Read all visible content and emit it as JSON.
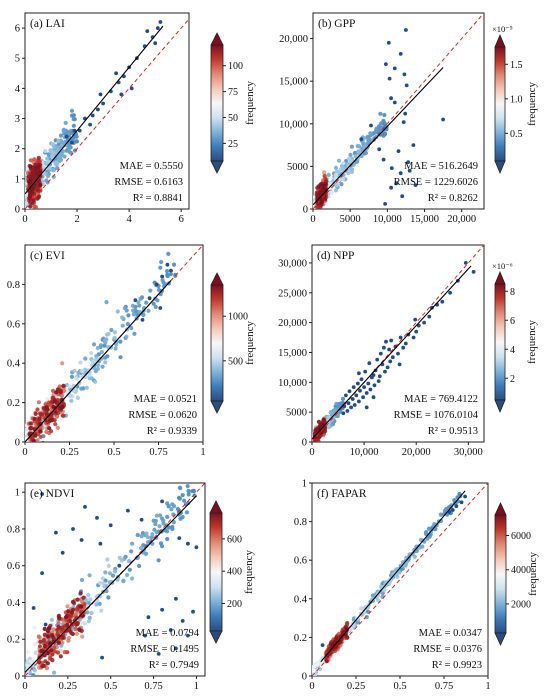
{
  "colorbar": {
    "stops": [
      "#2b4c7e",
      "#3d7cb8",
      "#7fb3d8",
      "#cfe2ee",
      "#f7f7f7",
      "#f4c8b5",
      "#e08a76",
      "#c0392b",
      "#7a1020"
    ]
  },
  "chart_data": [
    {
      "id": "a",
      "type": "scatter",
      "title": "(a) LAI",
      "xlim": [
        0,
        6.3
      ],
      "ylim": [
        0,
        6.5
      ],
      "xticks": [
        0,
        2,
        4,
        6
      ],
      "xticklabels": [
        "0",
        "2",
        "4",
        "6"
      ],
      "yticks": [
        0,
        1,
        2,
        3,
        4,
        5,
        6
      ],
      "yticklabels": [
        "0",
        "1",
        "2",
        "3",
        "4",
        "5",
        "6"
      ],
      "fit": {
        "slope": 1.05,
        "intercept": 0.5,
        "x_range": [
          0,
          5.3
        ]
      },
      "stats": [
        "MAE = 0.5550",
        "RMSE = 0.6163",
        "R² = 0.8841"
      ],
      "colorbar": {
        "label": "frequency",
        "ticks": [
          25,
          50,
          75,
          100
        ],
        "ticklabels": [
          "25",
          "50",
          "75",
          "100"
        ],
        "range": [
          8,
          120
        ],
        "multiplier": ""
      },
      "dense": {
        "x_max": 2.0,
        "slope": 1.05,
        "intercept": 0.5,
        "spread": 0.3,
        "core": [
          0.12,
          0.6
        ]
      },
      "outliers": [
        [
          5.2,
          6.2
        ],
        [
          5.1,
          6.0
        ],
        [
          4.9,
          5.7
        ],
        [
          4.6,
          5.4
        ],
        [
          4.3,
          5.0
        ],
        [
          4.0,
          4.7
        ],
        [
          3.8,
          4.4
        ],
        [
          3.6,
          4.2
        ],
        [
          3.3,
          3.9
        ],
        [
          3.0,
          3.5
        ],
        [
          2.8,
          3.3
        ],
        [
          2.6,
          3.1
        ],
        [
          2.5,
          2.8
        ],
        [
          2.3,
          3.0
        ],
        [
          2.1,
          2.6
        ],
        [
          4.1,
          4.0
        ],
        [
          3.7,
          3.8
        ],
        [
          1.9,
          2.6
        ],
        [
          1.8,
          2.2
        ],
        [
          1.6,
          2.4
        ],
        [
          5.0,
          5.5
        ],
        [
          4.7,
          5.9
        ],
        [
          3.5,
          4.5
        ],
        [
          2.9,
          3.8
        ]
      ]
    },
    {
      "id": "b",
      "type": "scatter",
      "title": "(b) GPP",
      "xlim": [
        0,
        23000
      ],
      "ylim": [
        0,
        23000
      ],
      "xticks": [
        0,
        5000,
        10000,
        15000,
        20000
      ],
      "xticklabels": [
        "0",
        "5000",
        "10,000",
        "15,000",
        "20,000"
      ],
      "yticks": [
        0,
        5000,
        10000,
        15000,
        20000
      ],
      "yticklabels": [
        "0",
        "5000",
        "10,000",
        "15,000",
        "20,000"
      ],
      "fit": {
        "slope": 0.92,
        "intercept": 500,
        "x_range": [
          0,
          17500
        ]
      },
      "stats": [
        "MAE = 516.2649",
        "RMSE = 1229.6026",
        "R² = 0.8262"
      ],
      "colorbar": {
        "label": "frequency",
        "ticks": [
          0.5,
          1.0,
          1.5
        ],
        "ticklabels": [
          "0.5",
          "1.0",
          "1.5"
        ],
        "range": [
          0.1,
          1.75
        ],
        "multiplier": "×10⁻⁵"
      },
      "dense": {
        "x_max": 10000,
        "slope": 0.95,
        "intercept": 600,
        "spread": 600,
        "core": [
          500,
          1800
        ]
      },
      "outliers": [
        [
          12500,
          21000
        ],
        [
          10200,
          19500
        ],
        [
          11800,
          18200
        ],
        [
          9800,
          17000
        ],
        [
          10500,
          13000
        ],
        [
          11000,
          12500
        ],
        [
          12300,
          15800
        ],
        [
          12600,
          14500
        ],
        [
          12200,
          10200
        ],
        [
          12800,
          5500
        ],
        [
          13000,
          4500
        ],
        [
          11800,
          4200
        ],
        [
          10600,
          4800
        ],
        [
          11200,
          3000
        ],
        [
          13800,
          2800
        ],
        [
          12000,
          1500
        ],
        [
          10500,
          2500
        ],
        [
          17500,
          10500
        ],
        [
          9700,
          600
        ],
        [
          9500,
          5800
        ],
        [
          8900,
          7000
        ],
        [
          11500,
          6800
        ],
        [
          6500,
          8200
        ],
        [
          7800,
          9800
        ],
        [
          12400,
          11200
        ],
        [
          11000,
          16500
        ],
        [
          10300,
          15300
        ],
        [
          13500,
          7500
        ]
      ]
    },
    {
      "id": "c",
      "type": "scatter",
      "title": "(c) EVI",
      "xlim": [
        0,
        1
      ],
      "ylim": [
        0,
        1
      ],
      "xticks": [
        0,
        0.25,
        0.5,
        0.75,
        1
      ],
      "xticklabels": [
        "0",
        "0.25",
        "0.5",
        "0.75",
        "1"
      ],
      "yticks": [
        0,
        0.2,
        0.4,
        0.6,
        0.8
      ],
      "yticklabels": [
        "0",
        "0.2",
        "0.4",
        "0.6",
        "0.8"
      ],
      "fit": {
        "slope": 1.0,
        "intercept": 0.0,
        "x_range": [
          0,
          0.82
        ]
      },
      "stats": [
        "MAE = 0.0521",
        "RMSE = 0.0620",
        "R² = 0.9339"
      ],
      "colorbar": {
        "label": "frequency",
        "ticks": [
          500,
          1000
        ],
        "ticklabels": [
          "500",
          "1000"
        ],
        "range": [
          50,
          1350
        ],
        "multiplier": ""
      },
      "dense": {
        "x_max": 0.85,
        "slope": 1.03,
        "intercept": 0.005,
        "spread": 0.045,
        "core": [
          0.02,
          0.22
        ]
      },
      "outliers": [
        [
          0.8,
          0.9
        ],
        [
          0.82,
          0.87
        ],
        [
          0.77,
          0.84
        ],
        [
          0.7,
          0.73
        ],
        [
          0.66,
          0.62
        ],
        [
          0.62,
          0.72
        ],
        [
          0.76,
          0.68
        ],
        [
          0.74,
          0.8
        ]
      ]
    },
    {
      "id": "d",
      "type": "scatter",
      "title": "(d) NPP",
      "xlim": [
        0,
        33000
      ],
      "ylim": [
        0,
        33000
      ],
      "xticks": [
        0,
        10000,
        20000,
        30000
      ],
      "xticklabels": [
        "0",
        "10,000",
        "20,000",
        "30,000"
      ],
      "yticks": [
        0,
        5000,
        10000,
        15000,
        20000,
        25000,
        30000
      ],
      "yticklabels": [
        "0",
        "5000",
        "10,000",
        "15,000",
        "20,000",
        "25,000",
        "30,000"
      ],
      "fit": {
        "slope": 0.95,
        "intercept": 500,
        "x_range": [
          0,
          30500
        ]
      },
      "stats": [
        "MAE = 769.4122",
        "RMSE = 1076.0104",
        "R² = 0.9513"
      ],
      "colorbar": {
        "label": "frequency",
        "ticks": [
          2,
          4,
          6,
          8
        ],
        "ticklabels": [
          "2",
          "4",
          "6",
          "8"
        ],
        "range": [
          0.5,
          8.5
        ],
        "multiplier": "×10⁻⁶"
      },
      "dense": {
        "x_max": 6000,
        "slope": 0.98,
        "intercept": 400,
        "spread": 500,
        "core": [
          500,
          2500
        ]
      },
      "outliers": [
        [
          31000,
          28500
        ],
        [
          29500,
          30000
        ],
        [
          28000,
          27000
        ],
        [
          26500,
          25000
        ],
        [
          25000,
          23500
        ],
        [
          24000,
          23000
        ],
        [
          23000,
          22500
        ],
        [
          22500,
          21000
        ],
        [
          21500,
          20000
        ],
        [
          20500,
          19500
        ],
        [
          20000,
          18500
        ],
        [
          19500,
          17500
        ],
        [
          18000,
          16500
        ],
        [
          17500,
          15800
        ],
        [
          17000,
          17500
        ],
        [
          16500,
          14800
        ],
        [
          16000,
          16000
        ],
        [
          15500,
          14200
        ],
        [
          15000,
          13500
        ],
        [
          14800,
          15500
        ],
        [
          14500,
          12500
        ],
        [
          14200,
          16800
        ],
        [
          14000,
          11800
        ],
        [
          13500,
          13000
        ],
        [
          13200,
          14800
        ],
        [
          13000,
          11000
        ],
        [
          12800,
          10200
        ],
        [
          12500,
          13800
        ],
        [
          12200,
          12000
        ],
        [
          12000,
          9500
        ],
        [
          11800,
          11200
        ],
        [
          11500,
          10800
        ],
        [
          11200,
          8800
        ],
        [
          11000,
          13200
        ],
        [
          10800,
          9800
        ],
        [
          10500,
          8200
        ],
        [
          10200,
          11800
        ],
        [
          10000,
          9200
        ],
        [
          9800,
          7500
        ],
        [
          9500,
          10500
        ],
        [
          9200,
          8600
        ],
        [
          9000,
          6800
        ],
        [
          8800,
          9800
        ],
        [
          8500,
          7800
        ],
        [
          8200,
          6200
        ],
        [
          8000,
          9200
        ],
        [
          7800,
          7200
        ],
        [
          7500,
          5800
        ],
        [
          7200,
          8500
        ],
        [
          7000,
          6500
        ],
        [
          6800,
          5200
        ],
        [
          6500,
          7800
        ],
        [
          6200,
          6000
        ],
        [
          6000,
          4800
        ],
        [
          18500,
          18000
        ],
        [
          16800,
          13000
        ],
        [
          15200,
          17000
        ],
        [
          13800,
          15800
        ],
        [
          19800,
          20500
        ],
        [
          11800,
          7500
        ],
        [
          10500,
          5800
        ],
        [
          9000,
          11500
        ]
      ]
    },
    {
      "id": "e",
      "type": "scatter",
      "title": "(e) NDVI",
      "xlim": [
        0,
        1.05
      ],
      "ylim": [
        0,
        1.05
      ],
      "xticks": [
        0,
        0.25,
        0.5,
        0.75,
        1
      ],
      "xticklabels": [
        "0",
        "0.25",
        "0.5",
        "0.75",
        "1"
      ],
      "yticks": [
        0,
        0.2,
        0.4,
        0.6,
        0.8,
        1
      ],
      "yticklabels": [
        "0",
        "0.2",
        "0.4",
        "0.6",
        "0.8",
        "1"
      ],
      "fit": {
        "slope": 0.96,
        "intercept": 0.02,
        "x_range": [
          0,
          1.0
        ]
      },
      "stats": [
        "MAE = 0.0794",
        "RMSE = 0.1495",
        "R² = 0.7949"
      ],
      "colorbar": {
        "label": "frequency",
        "ticks": [
          200,
          400,
          600
        ],
        "ticklabels": [
          "200",
          "400",
          "600"
        ],
        "range": [
          30,
          760
        ],
        "multiplier": ""
      },
      "dense": {
        "x_max": 1.0,
        "slope": 0.98,
        "intercept": 0.03,
        "spread": 0.05,
        "core": [
          0.08,
          0.35
        ]
      },
      "outliers": [
        [
          0.1,
          0.99
        ],
        [
          0.35,
          0.92
        ],
        [
          0.42,
          0.86
        ],
        [
          0.5,
          0.82
        ],
        [
          0.28,
          0.8
        ],
        [
          0.18,
          0.78
        ],
        [
          0.33,
          0.74
        ],
        [
          0.44,
          0.72
        ],
        [
          0.6,
          0.9
        ],
        [
          0.68,
          0.85
        ],
        [
          0.8,
          0.95
        ],
        [
          0.9,
          0.75
        ],
        [
          0.95,
          0.72
        ],
        [
          1.0,
          0.7
        ],
        [
          0.92,
          0.3
        ],
        [
          0.85,
          0.25
        ],
        [
          0.98,
          0.35
        ],
        [
          0.88,
          0.42
        ],
        [
          0.8,
          0.36
        ],
        [
          0.72,
          0.32
        ],
        [
          0.1,
          0.56
        ],
        [
          0.05,
          0.37
        ],
        [
          0.12,
          0.28
        ],
        [
          0.45,
          0.1
        ],
        [
          0.78,
          0.12
        ],
        [
          0.88,
          0.15
        ],
        [
          0.7,
          0.22
        ],
        [
          0.22,
          0.67
        ],
        [
          0.55,
          0.6
        ],
        [
          0.95,
          0.22
        ]
      ]
    },
    {
      "id": "f",
      "type": "scatter",
      "title": "(f) FAPAR",
      "xlim": [
        0,
        1
      ],
      "ylim": [
        0,
        1
      ],
      "xticks": [
        0,
        0.25,
        0.5,
        0.75,
        1
      ],
      "xticklabels": [
        "0",
        "0.25",
        "0.5",
        "0.75",
        "1"
      ],
      "yticks": [
        0,
        0.2,
        0.4,
        0.6,
        0.8,
        1
      ],
      "yticklabels": [
        "0",
        "0.2",
        "0.4",
        "0.6",
        "0.8",
        "1"
      ],
      "fit": {
        "slope": 1.08,
        "intercept": 0.02,
        "x_range": [
          0.05,
          0.87
        ]
      },
      "stats": [
        "MAE = 0.0347",
        "RMSE = 0.0376",
        "R² = 0.9923"
      ],
      "colorbar": {
        "label": "frequency",
        "ticks": [
          2000,
          4000,
          6000
        ],
        "ticklabels": [
          "2000",
          "4000",
          "6000"
        ],
        "range": [
          300,
          7200
        ],
        "multiplier": ""
      },
      "dense": {
        "x_max": 0.85,
        "slope": 1.08,
        "intercept": 0.02,
        "spread": 0.015,
        "core": [
          0.08,
          0.2
        ]
      },
      "outliers": [
        [
          0.87,
          0.93
        ],
        [
          0.85,
          0.9
        ],
        [
          0.82,
          0.88
        ],
        [
          0.8,
          0.86
        ],
        [
          0.78,
          0.85
        ],
        [
          0.06,
          0.16
        ]
      ]
    }
  ]
}
